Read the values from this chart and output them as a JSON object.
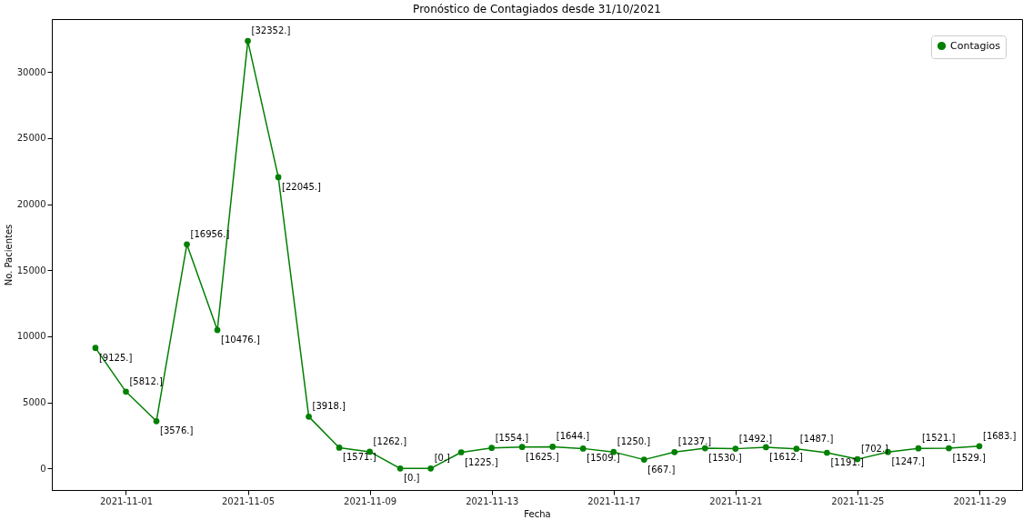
{
  "chart_data": {
    "type": "line",
    "title": "Pronóstico de Contagiados desde 31/10/2021",
    "xlabel": "Fecha",
    "ylabel": "No. Pacientes",
    "x": [
      "2021-10-31",
      "2021-11-01",
      "2021-11-02",
      "2021-11-03",
      "2021-11-04",
      "2021-11-05",
      "2021-11-06",
      "2021-11-07",
      "2021-11-08",
      "2021-11-09",
      "2021-11-10",
      "2021-11-11",
      "2021-11-12",
      "2021-11-13",
      "2021-11-14",
      "2021-11-15",
      "2021-11-16",
      "2021-11-17",
      "2021-11-18",
      "2021-11-19",
      "2021-11-20",
      "2021-11-21",
      "2021-11-22",
      "2021-11-23",
      "2021-11-24",
      "2021-11-25",
      "2021-11-26",
      "2021-11-27",
      "2021-11-28",
      "2021-11-29"
    ],
    "series": [
      {
        "name": "Contagios",
        "color": "#008000",
        "values": [
          9125,
          5812,
          3576,
          16956,
          10476,
          32352,
          22045,
          3918,
          1571,
          1262,
          0,
          0,
          1225,
          1554,
          1625,
          1644,
          1509,
          1250,
          667,
          1237,
          1530,
          1492,
          1612,
          1487,
          1191,
          702,
          1247,
          1521,
          1529,
          1683
        ],
        "value_labels": [
          "[9125.]",
          "[5812.]",
          "[3576.]",
          "[16956.]",
          "[10476.]",
          "[32352.]",
          "[22045.]",
          "[3918.]",
          "[1571.]",
          "[1262.]",
          "[0.]",
          "[0.]",
          "[1225.]",
          "[1554.]",
          "[1625.]",
          "[1644.]",
          "[1509.]",
          "[1250.]",
          "[667.]",
          "[1237.]",
          "[1530.]",
          "[1492.]",
          "[1612.]",
          "[1487.]",
          "[1191.]",
          "[702.]",
          "[1247.]",
          "[1521.]",
          "[1529.]",
          "[1683.]"
        ]
      }
    ],
    "xlim": [
      "2021-10-29T13:40",
      "2021-11-30T09:40"
    ],
    "xticks": [
      "2021-11-01",
      "2021-11-05",
      "2021-11-09",
      "2021-11-13",
      "2021-11-17",
      "2021-11-21",
      "2021-11-25",
      "2021-11-29"
    ],
    "ylim": [
      -1630,
      34010
    ],
    "yticks": [
      0,
      5000,
      10000,
      15000,
      20000,
      25000,
      30000
    ],
    "legend": "top right",
    "marker": "circle",
    "line_style": "solid",
    "grid": false
  }
}
